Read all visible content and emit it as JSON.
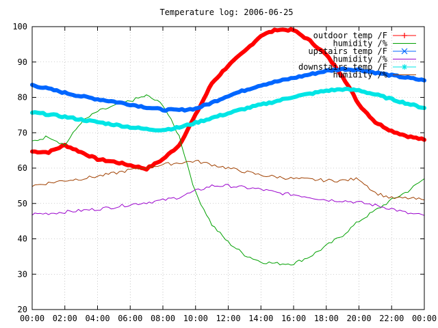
{
  "chart_data": {
    "type": "line",
    "title": "Temperature log: 2006-06-25",
    "xlabel": "",
    "ylabel": "",
    "ylim": [
      20,
      100
    ],
    "yticks": [
      20,
      30,
      40,
      50,
      60,
      70,
      80,
      90,
      100
    ],
    "xticks": [
      "00:00",
      "02:00",
      "04:00",
      "06:00",
      "08:00",
      "10:00",
      "12:00",
      "14:00",
      "16:00",
      "18:00",
      "20:00",
      "22:00",
      "00:00"
    ],
    "grid": true,
    "legend_position": "top-right",
    "x": [
      "00:00",
      "01:00",
      "02:00",
      "03:00",
      "04:00",
      "05:00",
      "06:00",
      "07:00",
      "08:00",
      "09:00",
      "10:00",
      "11:00",
      "12:00",
      "13:00",
      "14:00",
      "15:00",
      "16:00",
      "17:00",
      "18:00",
      "19:00",
      "20:00",
      "21:00",
      "22:00",
      "23:00",
      "24:00"
    ],
    "series": [
      {
        "name": "outdoor temp /F",
        "color": "#ff0000",
        "marker": "plus",
        "width": 6,
        "values": [
          64.7,
          64.5,
          66.5,
          64.5,
          62.5,
          61.8,
          60.8,
          59.8,
          62.5,
          66.5,
          75,
          84,
          89,
          93,
          97.5,
          99.2,
          99,
          96,
          92,
          86,
          78,
          73,
          70.5,
          69,
          68
        ]
      },
      {
        "name": "humidity /%",
        "color": "#00a000",
        "marker": "none",
        "width": 1,
        "values": [
          67.5,
          69,
          66.5,
          73,
          76,
          77.5,
          79,
          80.5,
          78,
          69,
          53,
          44,
          39,
          35.5,
          33.5,
          33,
          33,
          35,
          38,
          41,
          45,
          48,
          51,
          53.5,
          57
        ]
      },
      {
        "name": "upstairs temp /F",
        "color": "#0066ff",
        "marker": "x",
        "width": 6,
        "values": [
          83.5,
          82.4,
          81.3,
          80.3,
          79.5,
          78.8,
          78,
          77.2,
          76.5,
          76.4,
          76.8,
          78.5,
          80.5,
          82,
          83.5,
          84.5,
          85.5,
          86.5,
          87.5,
          88,
          87.8,
          87,
          86.2,
          85.5,
          84.8
        ]
      },
      {
        "name": "humidity /%",
        "color": "#9900cc",
        "marker": "none",
        "width": 1,
        "values": [
          47,
          47.2,
          47.6,
          48,
          48.4,
          49,
          49.7,
          50.3,
          50.9,
          51.8,
          53.5,
          55,
          55,
          54.5,
          54,
          53,
          52.5,
          51.8,
          51,
          50.8,
          50.3,
          49.5,
          48.5,
          47.2,
          46.6
        ]
      },
      {
        "name": "downstairs temp /F",
        "color": "#00e5e5",
        "marker": "star",
        "width": 6,
        "values": [
          75.7,
          75.2,
          74.5,
          73.7,
          73,
          72.3,
          71.6,
          71,
          70.8,
          71.5,
          72.8,
          74.2,
          75.5,
          76.8,
          77.9,
          79,
          80.2,
          81,
          81.9,
          82.3,
          82,
          80.8,
          79.5,
          78.2,
          77
        ]
      },
      {
        "name": "humidity /%",
        "color": "#a04000",
        "marker": "none",
        "width": 1,
        "values": [
          55,
          55.8,
          56.5,
          57,
          57.7,
          58.5,
          59.5,
          60.2,
          61,
          61.5,
          62,
          61,
          60,
          59,
          58,
          57.5,
          57,
          56.8,
          56.5,
          56.5,
          57,
          53,
          51.5,
          51.5,
          51
        ]
      }
    ]
  }
}
